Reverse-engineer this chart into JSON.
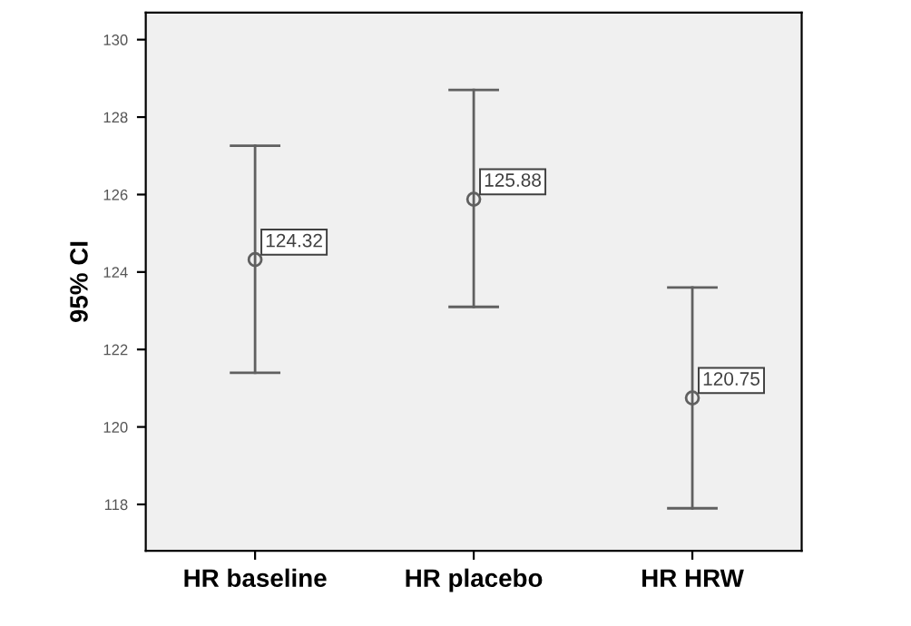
{
  "chart_data": {
    "type": "scatter",
    "ylabel": "95% CI",
    "categories": [
      "HR baseline",
      "HR placebo",
      "HR HRW"
    ],
    "series": [
      {
        "color": "#606060",
        "values": [
          124.32,
          125.88,
          120.75
        ],
        "errors": [
          [
            121.4,
            127.26
          ],
          [
            123.1,
            128.7
          ],
          [
            117.9,
            123.6
          ]
        ]
      }
    ],
    "data_labels": true,
    "marker": "circle",
    "grid": false,
    "ylim": [
      116.8,
      130.7
    ],
    "yticks": [
      118,
      120,
      122,
      124,
      126,
      128,
      130
    ]
  }
}
